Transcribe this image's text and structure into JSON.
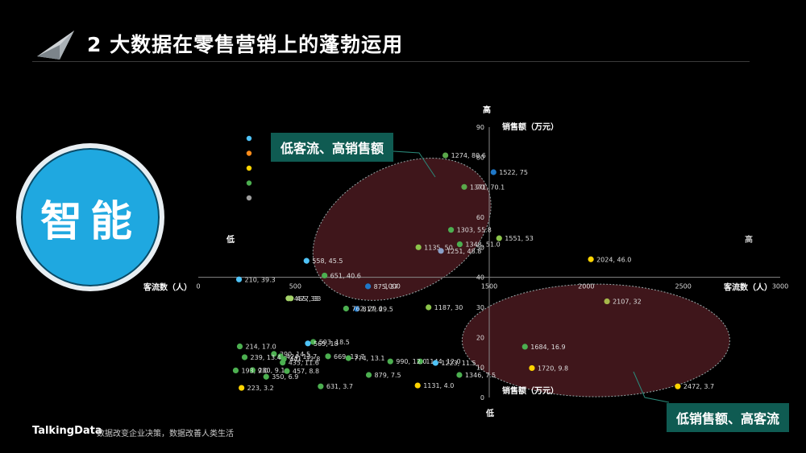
{
  "header": {
    "title": "2 大数据在零售营销上的蓬勃运用"
  },
  "badge": {
    "label": "智能"
  },
  "callouts": {
    "top_left": "低客流、高销售额",
    "bottom_right": "低销售额、高客流"
  },
  "footer": {
    "brand": "TalkingData",
    "slogan": "数据改变企业决策，数据改善人类生活"
  },
  "chart_data": {
    "type": "scatter",
    "x_axis": {
      "label": "客流数（人）",
      "range": [
        0,
        3000
      ],
      "ticks": [
        "0",
        "500",
        "1000",
        "1500",
        "2000",
        "2500",
        "3000"
      ],
      "end_labels": {
        "min": "低",
        "max": "高"
      }
    },
    "y_axis": {
      "label": "销售额（万元）",
      "range": [
        0,
        90
      ],
      "ticks": [
        "0",
        "10",
        "20",
        "30",
        "40",
        "50",
        "60",
        "70",
        "80",
        "90"
      ],
      "end_labels": {
        "min": "低",
        "max": "高"
      },
      "cross_at_x": 1500,
      "cross_x_axis_at_y": 40
    },
    "legend_colors": [
      "#4fc3f7",
      "#ff8c1a",
      "#ffd400",
      "#4caf50",
      "#9e9e9e"
    ],
    "points": [
      {
        "x": 1274,
        "y": 80.6,
        "label": "1274, 80.6",
        "color": "#5aa84a"
      },
      {
        "x": 1522,
        "y": 75,
        "label": "1522, 75",
        "color": "#1f78c8"
      },
      {
        "x": 1371,
        "y": 70.1,
        "label": "1371, 70.1",
        "color": "#5aa84a"
      },
      {
        "x": 1303,
        "y": 55.8,
        "label": "1303, 55.8",
        "color": "#4caf50"
      },
      {
        "x": 1551,
        "y": 53,
        "label": "1551, 53",
        "color": "#8bc34a"
      },
      {
        "x": 1348,
        "y": 51.0,
        "label": "1348, 51.0",
        "color": "#4caf50"
      },
      {
        "x": 1135,
        "y": 50,
        "label": "1135, 50",
        "color": "#8bc34a"
      },
      {
        "x": 1251,
        "y": 48.8,
        "label": "1251, 48.8",
        "color": "#8aa0c8"
      },
      {
        "x": 2024,
        "y": 46.0,
        "label": "2024, 46.0",
        "color": "#ffd400"
      },
      {
        "x": 558,
        "y": 45.5,
        "label": "558, 45.5",
        "color": "#4fc3f7"
      },
      {
        "x": 651,
        "y": 40.6,
        "label": "651, 40.6",
        "color": "#4caf50"
      },
      {
        "x": 210,
        "y": 39.3,
        "label": "210, 39.3",
        "color": "#4fc3f7"
      },
      {
        "x": 875,
        "y": 37,
        "label": "875, 37",
        "color": "#1f78c8"
      },
      {
        "x": 477,
        "y": 33,
        "label": "477, 33",
        "color": "#a5d46a"
      },
      {
        "x": 465,
        "y": 33,
        "label": "465, 33",
        "color": "#a5d46a"
      },
      {
        "x": 817,
        "y": 29.5,
        "label": "817, 29.5",
        "color": "#1f78c8"
      },
      {
        "x": 762,
        "y": 29.6,
        "label": "762, 29.6",
        "color": "#4caf50"
      },
      {
        "x": 1187,
        "y": 30,
        "label": "1187, 30",
        "color": "#8bc34a"
      },
      {
        "x": 2107,
        "y": 32,
        "label": "2107, 32",
        "color": "#a5b84a"
      },
      {
        "x": 390,
        "y": 14.5,
        "label": "390, 14.5",
        "color": "#4caf50"
      },
      {
        "x": 593,
        "y": 18.5,
        "label": "593, 18.5",
        "color": "#4caf50"
      },
      {
        "x": 565,
        "y": 18,
        "label": "565, 18",
        "color": "#4fc3f7"
      },
      {
        "x": 214,
        "y": 17.0,
        "label": "214, 17.0",
        "color": "#4caf50"
      },
      {
        "x": 424,
        "y": 13.7,
        "label": "424, 13.7",
        "color": "#4caf50"
      },
      {
        "x": 669,
        "y": 13.7,
        "label": "669, 13.7",
        "color": "#4caf50"
      },
      {
        "x": 239,
        "y": 13.4,
        "label": "239, 13.4",
        "color": "#4caf50"
      },
      {
        "x": 774,
        "y": 13.1,
        "label": "774, 13.1",
        "color": "#4caf50"
      },
      {
        "x": 441,
        "y": 12.8,
        "label": "441, 12.8",
        "color": "#4caf50"
      },
      {
        "x": 1144,
        "y": 12.0,
        "label": "1144, 12.0",
        "color": "#4caf50"
      },
      {
        "x": 990,
        "y": 12.0,
        "label": "990, 12.0",
        "color": "#4caf50"
      },
      {
        "x": 1223,
        "y": 11.5,
        "label": "1223, 11.5",
        "color": "#4fc3f7"
      },
      {
        "x": 435,
        "y": 11.6,
        "label": "435, 11.6",
        "color": "#4caf50"
      },
      {
        "x": 280,
        "y": 9.1,
        "label": "280, 9.1",
        "color": "#4caf50"
      },
      {
        "x": 193,
        "y": 9.0,
        "label": "193, 9.0",
        "color": "#4caf50"
      },
      {
        "x": 350,
        "y": 6.9,
        "label": "350, 6.9",
        "color": "#4caf50"
      },
      {
        "x": 457,
        "y": 8.8,
        "label": "457, 8.8",
        "color": "#4caf50"
      },
      {
        "x": 879,
        "y": 7.5,
        "label": "879, 7.5",
        "color": "#4caf50"
      },
      {
        "x": 1346,
        "y": 7.5,
        "label": "1346, 7.5",
        "color": "#4caf50"
      },
      {
        "x": 1684,
        "y": 16.9,
        "label": "1684, 16.9",
        "color": "#4caf50"
      },
      {
        "x": 1720,
        "y": 9.8,
        "label": "1720, 9.8",
        "color": "#ffd400"
      },
      {
        "x": 223,
        "y": 3.2,
        "label": "223, 3.2",
        "color": "#ffd400"
      },
      {
        "x": 631,
        "y": 3.7,
        "label": "631, 3.7",
        "color": "#4caf50"
      },
      {
        "x": 1131,
        "y": 4.0,
        "label": "1131, 4.0",
        "color": "#ffd400"
      },
      {
        "x": 2472,
        "y": 3.7,
        "label": "2472, 3.7",
        "color": "#ffd400"
      }
    ],
    "grid": false,
    "highlight_regions": [
      {
        "center_x": 1050,
        "center_y": 56,
        "label_ref": "callouts.top_left"
      },
      {
        "center_x": 2050,
        "center_y": 19,
        "label_ref": "callouts.bottom_right"
      }
    ]
  }
}
